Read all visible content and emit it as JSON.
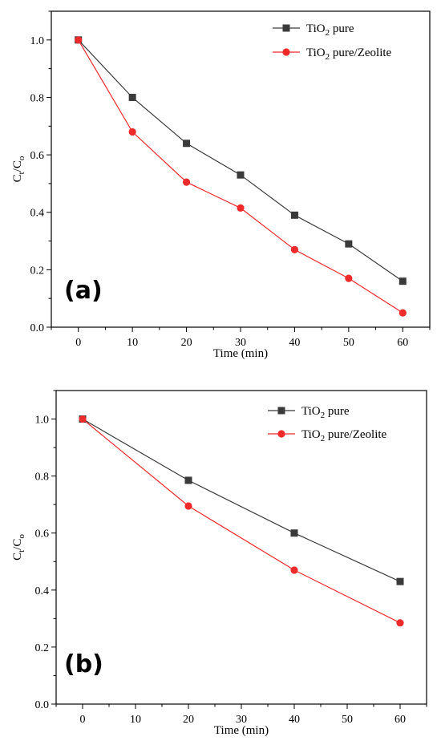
{
  "colors": {
    "series1": "#3a3a3a",
    "series2": "#ee2a2a"
  },
  "chart_data": [
    {
      "type": "line",
      "panel_label": "(a)",
      "xlabel": "Time (min)",
      "ylabel": {
        "main": "C",
        "sub": "t",
        "sep": "/",
        "main2": "C",
        "sub2": "o"
      },
      "xlim": [
        -5,
        65
      ],
      "ylim": [
        0,
        1.1
      ],
      "xticks": [
        0,
        10,
        20,
        30,
        40,
        50,
        60
      ],
      "yticks": [
        0.0,
        0.2,
        0.4,
        0.6,
        0.8,
        1.0
      ],
      "ytick_labels": [
        "0.0",
        "0.2",
        "0.4",
        "0.6",
        "0.8",
        "1.0"
      ],
      "legend_position": "top-right",
      "series": [
        {
          "name": "TiO2 pure",
          "label_parts": [
            "TiO",
            "2",
            " pure"
          ],
          "marker": "square",
          "color": "#3a3a3a",
          "x": [
            0,
            10,
            20,
            30,
            40,
            50,
            60
          ],
          "y": [
            1.0,
            0.8,
            0.64,
            0.53,
            0.39,
            0.29,
            0.16
          ]
        },
        {
          "name": "TiO2 pure/Zeolite",
          "label_parts": [
            "TiO",
            "2",
            " pure/Zeolite"
          ],
          "marker": "circle",
          "color": "#ee2a2a",
          "x": [
            0,
            10,
            20,
            30,
            40,
            50,
            60
          ],
          "y": [
            1.0,
            0.68,
            0.505,
            0.415,
            0.27,
            0.17,
            0.05
          ]
        }
      ]
    },
    {
      "type": "line",
      "panel_label": "(b)",
      "xlabel": "Time (min)",
      "ylabel": {
        "main": "C",
        "sub": "t",
        "sep": "/",
        "main2": "C",
        "sub2": "o"
      },
      "xlim": [
        -5,
        65
      ],
      "ylim": [
        0,
        1.1
      ],
      "xticks": [
        0,
        10,
        20,
        30,
        40,
        50,
        60
      ],
      "yticks": [
        0.0,
        0.2,
        0.4,
        0.6,
        0.8,
        1.0
      ],
      "ytick_labels": [
        "0.0",
        "0.2",
        "0.4",
        "0.6",
        "0.8",
        "1.0"
      ],
      "legend_position": "top-right",
      "series": [
        {
          "name": "TiO2 pure",
          "label_parts": [
            "TiO",
            "2",
            " pure"
          ],
          "marker": "square",
          "color": "#3a3a3a",
          "x": [
            0,
            20,
            40,
            60
          ],
          "y": [
            1.0,
            0.785,
            0.6,
            0.43
          ]
        },
        {
          "name": "TiO2 pure/Zeolite",
          "label_parts": [
            "TiO",
            "2",
            " pure/Zeolite"
          ],
          "marker": "circle",
          "color": "#ee2a2a",
          "x": [
            0,
            20,
            40,
            60
          ],
          "y": [
            1.0,
            0.695,
            0.47,
            0.285
          ]
        }
      ]
    }
  ]
}
